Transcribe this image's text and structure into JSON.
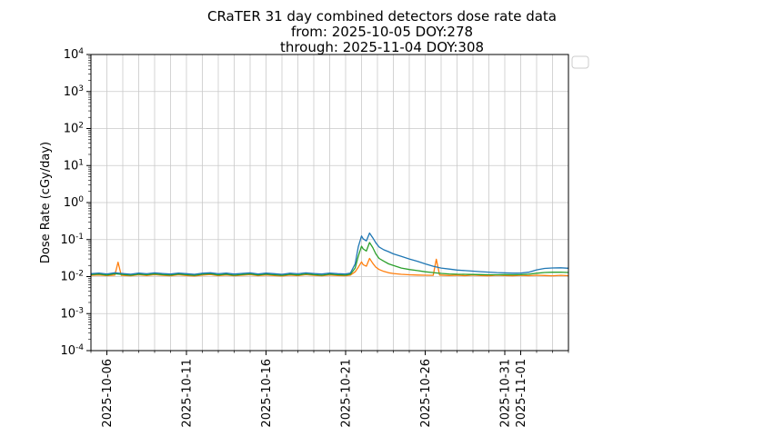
{
  "chart_data": {
    "type": "line",
    "title": "CRaTER 31 day combined detectors dose rate data",
    "subtitle_from": "from: 2025-10-05 DOY:278",
    "subtitle_through": "through: 2025-11-04 DOY:308",
    "ylabel": "Dose Rate (cGy/day)",
    "xlabel": "",
    "x_domain": [
      0,
      30
    ],
    "x_domain_dates": [
      "2025-10-05",
      "2025-11-04"
    ],
    "ylog_range": [
      -4,
      4
    ],
    "y_tick_exponents": [
      4,
      3,
      2,
      1,
      0,
      -1,
      -2,
      -3,
      -4
    ],
    "x_ticks": [
      {
        "day": 1,
        "label": "2025-10-06"
      },
      {
        "day": 6,
        "label": "2025-10-11"
      },
      {
        "day": 11,
        "label": "2025-10-16"
      },
      {
        "day": 16,
        "label": "2025-10-21"
      },
      {
        "day": 21,
        "label": "2025-10-26"
      },
      {
        "day": 26,
        "label": "2025-10-31"
      },
      {
        "day": 27,
        "label": "2025-11-01"
      }
    ],
    "grid": {
      "vertical_every_days": 1,
      "horizontal_decades": true,
      "color": "#c9c9c9"
    },
    "legend": {
      "visible": true,
      "entries": [],
      "position": "top-right-outside"
    },
    "series": [
      {
        "name": "orange",
        "color": "#ff7f0e",
        "points": [
          [
            0,
            0.0108
          ],
          [
            0.5,
            0.0111
          ],
          [
            1,
            0.0106
          ],
          [
            1.5,
            0.011
          ],
          [
            1.7,
            0.0245
          ],
          [
            1.9,
            0.0108
          ],
          [
            2.5,
            0.0105
          ],
          [
            3,
            0.0112
          ],
          [
            3.5,
            0.0107
          ],
          [
            4,
            0.0113
          ],
          [
            4.5,
            0.0108
          ],
          [
            5,
            0.0105
          ],
          [
            5.5,
            0.0112
          ],
          [
            6,
            0.0107
          ],
          [
            6.5,
            0.0104
          ],
          [
            7,
            0.011
          ],
          [
            7.5,
            0.0114
          ],
          [
            8,
            0.0106
          ],
          [
            8.5,
            0.0111
          ],
          [
            9,
            0.0105
          ],
          [
            9.5,
            0.0109
          ],
          [
            10,
            0.0113
          ],
          [
            10.5,
            0.0106
          ],
          [
            11,
            0.0111
          ],
          [
            11.5,
            0.0107
          ],
          [
            12,
            0.0104
          ],
          [
            12.5,
            0.011
          ],
          [
            13,
            0.0106
          ],
          [
            13.5,
            0.0113
          ],
          [
            14,
            0.0108
          ],
          [
            14.5,
            0.0105
          ],
          [
            15,
            0.0111
          ],
          [
            15.5,
            0.0107
          ],
          [
            16,
            0.0105
          ],
          [
            16.3,
            0.011
          ],
          [
            16.6,
            0.0135
          ],
          [
            16.8,
            0.018
          ],
          [
            17.0,
            0.025
          ],
          [
            17.1,
            0.021
          ],
          [
            17.3,
            0.019
          ],
          [
            17.5,
            0.031
          ],
          [
            17.7,
            0.023
          ],
          [
            17.9,
            0.018
          ],
          [
            18.1,
            0.0155
          ],
          [
            18.4,
            0.0138
          ],
          [
            18.7,
            0.0127
          ],
          [
            19,
            0.0121
          ],
          [
            19.5,
            0.0115
          ],
          [
            20,
            0.0112
          ],
          [
            20.5,
            0.011
          ],
          [
            21,
            0.0109
          ],
          [
            21.5,
            0.0108
          ],
          [
            21.7,
            0.0295
          ],
          [
            21.9,
            0.011
          ],
          [
            22.5,
            0.0107
          ],
          [
            23,
            0.0109
          ],
          [
            23.5,
            0.0106
          ],
          [
            24,
            0.011
          ],
          [
            24.5,
            0.0107
          ],
          [
            25,
            0.0105
          ],
          [
            25.5,
            0.0109
          ],
          [
            26,
            0.0107
          ],
          [
            26.5,
            0.0105
          ],
          [
            27,
            0.0108
          ],
          [
            27.5,
            0.0106
          ],
          [
            28,
            0.0109
          ],
          [
            28.5,
            0.0107
          ],
          [
            29,
            0.0105
          ],
          [
            29.5,
            0.0108
          ],
          [
            30,
            0.0106
          ]
        ]
      },
      {
        "name": "green",
        "color": "#2ca02c",
        "points": [
          [
            0,
            0.0113
          ],
          [
            0.5,
            0.0117
          ],
          [
            1,
            0.011
          ],
          [
            1.5,
            0.0119
          ],
          [
            2,
            0.0114
          ],
          [
            2.5,
            0.0109
          ],
          [
            3,
            0.0116
          ],
          [
            3.5,
            0.0112
          ],
          [
            4,
            0.0118
          ],
          [
            4.5,
            0.0113
          ],
          [
            5,
            0.011
          ],
          [
            5.5,
            0.0117
          ],
          [
            6,
            0.0112
          ],
          [
            6.5,
            0.0108
          ],
          [
            7,
            0.0115
          ],
          [
            7.5,
            0.0119
          ],
          [
            8,
            0.0111
          ],
          [
            8.5,
            0.0116
          ],
          [
            9,
            0.0109
          ],
          [
            9.5,
            0.0114
          ],
          [
            10,
            0.0118
          ],
          [
            10.5,
            0.0111
          ],
          [
            11,
            0.0116
          ],
          [
            11.5,
            0.0112
          ],
          [
            12,
            0.0108
          ],
          [
            12.5,
            0.0115
          ],
          [
            13,
            0.0111
          ],
          [
            13.5,
            0.0118
          ],
          [
            14,
            0.0113
          ],
          [
            14.5,
            0.0109
          ],
          [
            15,
            0.0116
          ],
          [
            15.5,
            0.0112
          ],
          [
            16,
            0.011
          ],
          [
            16.3,
            0.0116
          ],
          [
            16.6,
            0.017
          ],
          [
            16.8,
            0.036
          ],
          [
            17.0,
            0.066
          ],
          [
            17.1,
            0.056
          ],
          [
            17.3,
            0.049
          ],
          [
            17.5,
            0.083
          ],
          [
            17.7,
            0.061
          ],
          [
            17.9,
            0.041
          ],
          [
            18.1,
            0.031
          ],
          [
            18.4,
            0.026
          ],
          [
            18.7,
            0.022
          ],
          [
            19,
            0.02
          ],
          [
            19.5,
            0.017
          ],
          [
            20,
            0.0155
          ],
          [
            20.5,
            0.0145
          ],
          [
            21,
            0.0135
          ],
          [
            21.5,
            0.0128
          ],
          [
            22,
            0.0122
          ],
          [
            22.5,
            0.0118
          ],
          [
            23,
            0.0116
          ],
          [
            23.5,
            0.0115
          ],
          [
            24,
            0.0114
          ],
          [
            24.5,
            0.0113
          ],
          [
            25,
            0.0112
          ],
          [
            25.5,
            0.0112
          ],
          [
            26,
            0.0113
          ],
          [
            26.5,
            0.0112
          ],
          [
            27,
            0.0113
          ],
          [
            27.5,
            0.0116
          ],
          [
            28,
            0.0123
          ],
          [
            28.5,
            0.0129
          ],
          [
            29,
            0.0131
          ],
          [
            29.5,
            0.0132
          ],
          [
            30,
            0.0129
          ]
        ]
      },
      {
        "name": "blue",
        "color": "#1f77b4",
        "points": [
          [
            0,
            0.012
          ],
          [
            0.5,
            0.0125
          ],
          [
            1,
            0.0118
          ],
          [
            1.5,
            0.0127
          ],
          [
            2,
            0.0121
          ],
          [
            2.5,
            0.0116
          ],
          [
            3,
            0.0124
          ],
          [
            3.5,
            0.0119
          ],
          [
            4,
            0.0126
          ],
          [
            4.5,
            0.0121
          ],
          [
            5,
            0.0117
          ],
          [
            5.5,
            0.0125
          ],
          [
            6,
            0.012
          ],
          [
            6.5,
            0.0115
          ],
          [
            7,
            0.0123
          ],
          [
            7.5,
            0.0127
          ],
          [
            8,
            0.0119
          ],
          [
            8.5,
            0.0124
          ],
          [
            9,
            0.0117
          ],
          [
            9.5,
            0.0122
          ],
          [
            10,
            0.0126
          ],
          [
            10.5,
            0.0118
          ],
          [
            11,
            0.0124
          ],
          [
            11.5,
            0.012
          ],
          [
            12,
            0.0115
          ],
          [
            12.5,
            0.0123
          ],
          [
            13,
            0.0119
          ],
          [
            13.5,
            0.0126
          ],
          [
            14,
            0.0121
          ],
          [
            14.5,
            0.0117
          ],
          [
            15,
            0.0124
          ],
          [
            15.5,
            0.012
          ],
          [
            16,
            0.0118
          ],
          [
            16.3,
            0.0125
          ],
          [
            16.6,
            0.022
          ],
          [
            16.8,
            0.065
          ],
          [
            17.0,
            0.125
          ],
          [
            17.1,
            0.105
          ],
          [
            17.3,
            0.092
          ],
          [
            17.5,
            0.15
          ],
          [
            17.7,
            0.112
          ],
          [
            17.9,
            0.082
          ],
          [
            18.1,
            0.063
          ],
          [
            18.4,
            0.053
          ],
          [
            18.7,
            0.047
          ],
          [
            19,
            0.041
          ],
          [
            19.5,
            0.035
          ],
          [
            20,
            0.03
          ],
          [
            20.5,
            0.026
          ],
          [
            21,
            0.022
          ],
          [
            21.5,
            0.019
          ],
          [
            22,
            0.017
          ],
          [
            22.5,
            0.016
          ],
          [
            23,
            0.015
          ],
          [
            23.5,
            0.0145
          ],
          [
            24,
            0.014
          ],
          [
            24.5,
            0.0136
          ],
          [
            25,
            0.0132
          ],
          [
            25.5,
            0.0128
          ],
          [
            26,
            0.0126
          ],
          [
            26.5,
            0.0124
          ],
          [
            27,
            0.0125
          ],
          [
            27.5,
            0.0131
          ],
          [
            28,
            0.0152
          ],
          [
            28.5,
            0.0166
          ],
          [
            29,
            0.0171
          ],
          [
            29.5,
            0.0173
          ],
          [
            30,
            0.0168
          ]
        ]
      }
    ]
  }
}
